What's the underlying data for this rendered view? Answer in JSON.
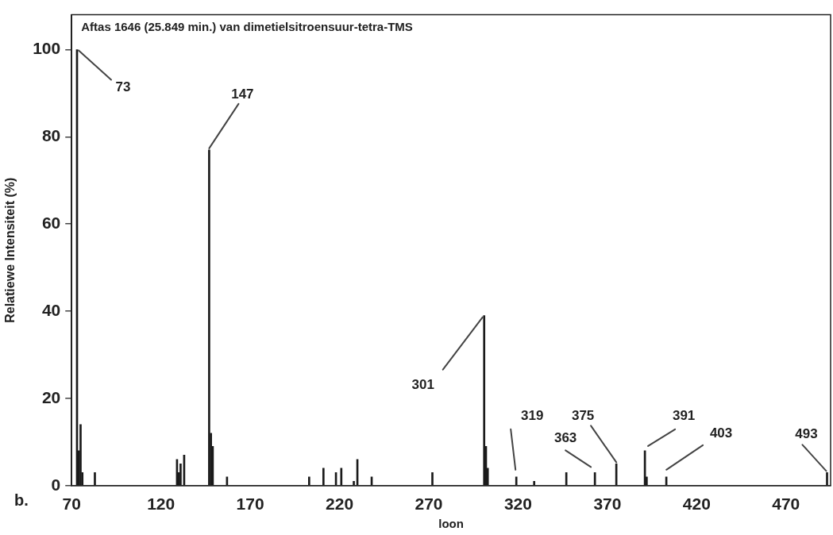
{
  "chart_data": {
    "type": "bar",
    "title": "Aftas 1646 (25.849 min.) van dimetielsitroensuur-tetra-TMS",
    "xlabel": "loon",
    "ylabel": "Relatiewe Intensiteit (%)",
    "x": [
      73,
      74,
      75,
      76,
      83,
      129,
      130,
      131,
      133,
      147,
      148,
      149,
      157,
      203,
      211,
      218,
      221,
      228,
      230,
      238,
      272,
      301,
      302,
      303,
      319,
      329,
      347,
      363,
      375,
      391,
      392,
      403,
      493
    ],
    "values": [
      100,
      8,
      14,
      3,
      3,
      6,
      3,
      5,
      7,
      77,
      12,
      9,
      2,
      2,
      4,
      3,
      4,
      1,
      6,
      2,
      3,
      39,
      9,
      4,
      2,
      1,
      3,
      3,
      5,
      8,
      2,
      2,
      3
    ],
    "color": "#1a1a1a",
    "xlim": [
      70,
      495
    ],
    "xticks": [
      70,
      120,
      170,
      220,
      270,
      320,
      370,
      420,
      470
    ],
    "ylim": [
      0,
      108
    ],
    "yticks": [
      0,
      20,
      40,
      60,
      80,
      100
    ],
    "grid": false,
    "legend": false,
    "annotations": [
      {
        "text": "73",
        "x": 73,
        "y": 100
      },
      {
        "text": "147",
        "x": 147,
        "y": 77
      },
      {
        "text": "301",
        "x": 301,
        "y": 39
      },
      {
        "text": "319",
        "x": 319,
        "y": 2
      },
      {
        "text": "363",
        "x": 363,
        "y": 3
      },
      {
        "text": "375",
        "x": 375,
        "y": 5
      },
      {
        "text": "391",
        "x": 391,
        "y": 8
      },
      {
        "text": "403",
        "x": 403,
        "y": 2
      },
      {
        "text": "493",
        "x": 493,
        "y": 3
      },
      "b."
    ]
  }
}
